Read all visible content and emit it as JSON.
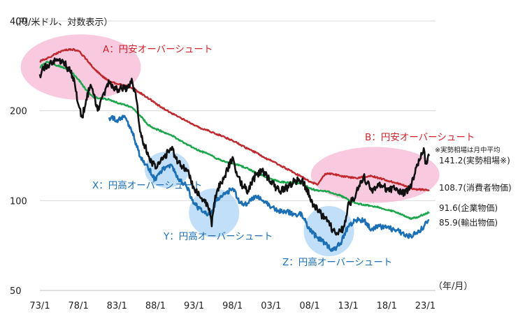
{
  "chart_data": {
    "type": "line",
    "title": "",
    "ylabel": "（円/米ドル、対数表示）",
    "xlabel": "（年/月）",
    "yscale": "log",
    "ylim": [
      50,
      400
    ],
    "yticks": [
      "400",
      "200",
      "100",
      "50"
    ],
    "ytick_values": [
      400,
      200,
      100,
      50
    ],
    "xlim": [
      1973.0,
      2023.6
    ],
    "xticks": [
      "73/1",
      "78/1",
      "83/1",
      "88/1",
      "93/1",
      "98/1",
      "03/1",
      "08/1",
      "13/1",
      "18/1",
      "23/1"
    ],
    "xtick_values": [
      1973,
      1978,
      1983,
      1988,
      1993,
      1998,
      2003,
      2008,
      2013,
      2018,
      2023
    ],
    "colors": {
      "cpi": "#c0282d",
      "cgpi": "#1aa64a",
      "import": "#111111",
      "export": "#1b6fb5",
      "pink_bubble": "#f7b6d2",
      "blue_bubble": "#a9d3f5",
      "text_red": "#d2232a",
      "text_blue": "#1b6fb5"
    },
    "series": [
      {
        "name": "消費者物価",
        "key": "cpi",
        "x": [
          1973,
          1974,
          1975,
          1976,
          1977,
          1978,
          1979,
          1980,
          1981,
          1982,
          1983,
          1984,
          1985,
          1986,
          1987,
          1988,
          1989,
          1990,
          1991,
          1992,
          1993,
          1994,
          1995,
          1996,
          1997,
          1998,
          1999,
          2000,
          2001,
          2002,
          2003,
          2004,
          2005,
          2006,
          2007,
          2008,
          2009,
          2010,
          2011,
          2012,
          2013,
          2014,
          2015,
          2016,
          2017,
          2018,
          2019,
          2020,
          2021,
          2022,
          2023.5
        ],
        "y": [
          293,
          300,
          310,
          318,
          322,
          318,
          298,
          278,
          262,
          252,
          246,
          243,
          238,
          230,
          221,
          212,
          204,
          197,
          191,
          185,
          179,
          174,
          171,
          167,
          163,
          159,
          154,
          149,
          145,
          140,
          136,
          132,
          128,
          124,
          120,
          116,
          113,
          123,
          123,
          121,
          120,
          119,
          120,
          121,
          119,
          117,
          115,
          113,
          110,
          109,
          108.7
        ]
      },
      {
        "name": "企業物価",
        "key": "cgpi",
        "x": [
          1973,
          1974,
          1975,
          1976,
          1977,
          1978,
          1979,
          1980,
          1981,
          1982,
          1983,
          1984,
          1985,
          1986,
          1987,
          1988,
          1989,
          1990,
          1991,
          1992,
          1993,
          1994,
          1995,
          1996,
          1997,
          1998,
          1999,
          2000,
          2001,
          2002,
          2003,
          2004,
          2005,
          2006,
          2007,
          2008,
          2009,
          2010,
          2011,
          2012,
          2013,
          2014,
          2015,
          2016,
          2017,
          2018,
          2019,
          2020,
          2021,
          2022,
          2023.5
        ],
        "y": [
          280,
          292,
          285,
          280,
          272,
          255,
          235,
          222,
          220,
          218,
          213,
          210,
          205,
          193,
          180,
          174,
          170,
          166,
          160,
          155,
          150,
          146,
          143,
          138,
          135,
          133,
          131,
          128,
          124,
          121,
          118,
          116,
          115,
          115,
          114,
          110,
          108,
          108,
          106,
          104,
          101,
          98,
          97,
          96,
          95,
          93,
          92,
          90,
          87,
          88,
          91.6
        ]
      },
      {
        "name": "輸出物価",
        "key": "export",
        "x": [
          1982,
          1983,
          1984,
          1985,
          1986,
          1987,
          1988,
          1989,
          1990,
          1991,
          1992,
          1993,
          1994,
          1995,
          1996,
          1997,
          1998,
          1999,
          2000,
          2001,
          2002,
          2003,
          2004,
          2005,
          2006,
          2007,
          2008,
          2009,
          2010,
          2011,
          2012,
          2013,
          2014,
          2015,
          2016,
          2017,
          2018,
          2019,
          2020,
          2021,
          2022,
          2023.5
        ],
        "y": [
          190,
          186,
          192,
          170,
          140,
          130,
          117,
          128,
          132,
          118,
          112,
          98,
          92,
          90,
          100,
          105,
          110,
          98,
          98,
          104,
          100,
          95,
          92,
          92,
          90,
          90,
          80,
          75,
          72,
          68,
          72,
          82,
          86,
          86,
          80,
          82,
          81,
          80,
          78,
          76,
          78,
          85.9
        ]
      },
      {
        "name": "実勢相場（月中平均）",
        "key": "import",
        "x": [
          1973,
          1973.5,
          1974,
          1974.5,
          1975,
          1976,
          1977,
          1977.5,
          1978,
          1978.5,
          1979,
          1979.5,
          1980,
          1980.5,
          1981,
          1982,
          1982.5,
          1983,
          1984,
          1985,
          1985.5,
          1986,
          1986.5,
          1987,
          1987.5,
          1988,
          1989,
          1990,
          1990.5,
          1991,
          1992,
          1993,
          1994,
          1995,
          1995.3,
          1995.6,
          1996,
          1997,
          1998,
          1998.5,
          1999,
          2000,
          2001,
          2002,
          2003,
          2004,
          2005,
          2006,
          2007,
          2008,
          2008.5,
          2009,
          2010,
          2011,
          2011.7,
          2012,
          2012.5,
          2013,
          2013.5,
          2014,
          2015,
          2016,
          2017,
          2018,
          2019,
          2020,
          2021,
          2022,
          2022.8,
          2023,
          2023.5
        ],
        "y": [
          265,
          275,
          285,
          290,
          296,
          294,
          268,
          250,
          210,
          190,
          218,
          240,
          226,
          200,
          220,
          250,
          240,
          236,
          237,
          250,
          220,
          170,
          155,
          145,
          135,
          128,
          138,
          150,
          142,
          134,
          128,
          110,
          102,
          94,
          82,
          98,
          108,
          121,
          140,
          125,
          115,
          108,
          122,
          125,
          116,
          108,
          110,
          116,
          117,
          104,
          96,
          93,
          87,
          80,
          77,
          79,
          82,
          98,
          100,
          105,
          121,
          108,
          112,
          110,
          109,
          106,
          110,
          131,
          150,
          133,
          141.2
        ]
      }
    ],
    "end_labels": [
      {
        "key": "import",
        "text": "141.2(実勢相場※)"
      },
      {
        "key": "cpi",
        "text": "108.7(消費者物価)"
      },
      {
        "key": "cgpi",
        "text": "91.6(企業物価)"
      },
      {
        "key": "export",
        "text": "85.9(輸出物価)"
      }
    ],
    "note": "※実勢相場は月中平均",
    "annotations": [
      {
        "key": "A",
        "text": "A：円安オーバーシュート",
        "type": "pink",
        "x": 1978.5,
        "y": 280
      },
      {
        "key": "B",
        "text": "B：円安オーバーシュート",
        "type": "pink",
        "x": 2016.5,
        "y": 122
      },
      {
        "key": "X",
        "text": "X：円高オーバーシュート",
        "type": "blue",
        "x": 1989.5,
        "y": 127
      },
      {
        "key": "Y",
        "text": "Y：円高オーバーシュート",
        "type": "blue",
        "x": 1995.6,
        "y": 91
      },
      {
        "key": "Z",
        "text": "Z：円高オーバーシュート",
        "type": "blue",
        "x": 2010.5,
        "y": 79
      }
    ]
  }
}
